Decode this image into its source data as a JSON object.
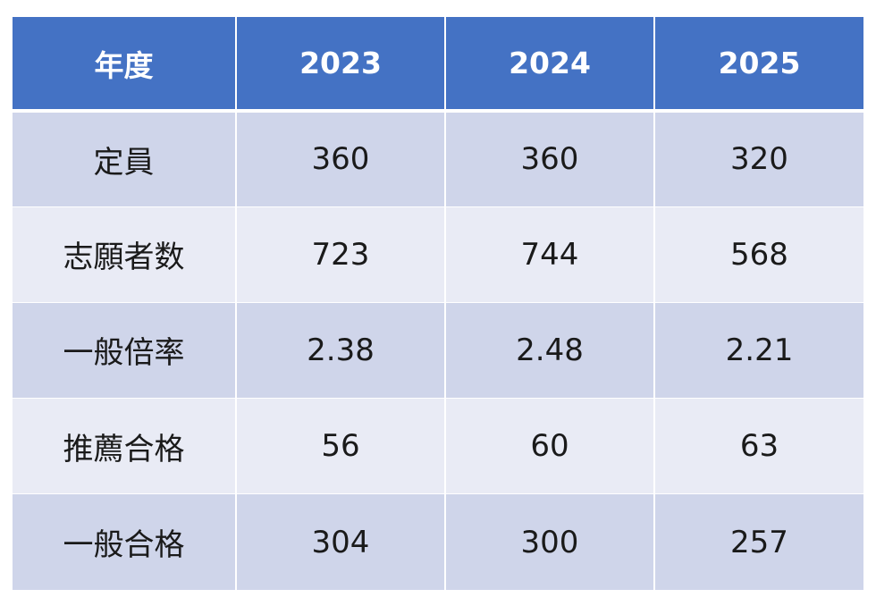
{
  "chart_data": {
    "type": "table",
    "columns": [
      "年度",
      "2023",
      "2024",
      "2025"
    ],
    "rows": [
      {
        "label": "定員",
        "values": [
          "360",
          "360",
          "320"
        ]
      },
      {
        "label": "志願者数",
        "values": [
          "723",
          "744",
          "568"
        ]
      },
      {
        "label": "一般倍率",
        "values": [
          "2.38",
          "2.48",
          "2.21"
        ]
      },
      {
        "label": "推薦合格",
        "values": [
          "56",
          "60",
          "63"
        ]
      },
      {
        "label": "一般合格",
        "values": [
          "304",
          "300",
          "257"
        ]
      }
    ]
  },
  "colors": {
    "header_bg": "#4472c4",
    "header_text": "#ffffff",
    "row_dark": "#cfd5ea",
    "row_light": "#e9ebf5",
    "cell_text": "#1a1a1a"
  }
}
